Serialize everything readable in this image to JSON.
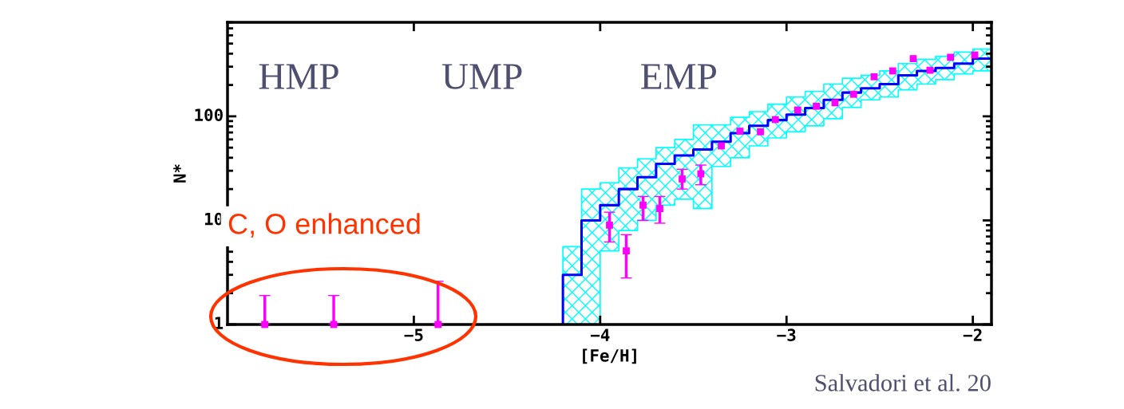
{
  "chart_data": {
    "type": "step",
    "xlabel": "[Fe/H]",
    "ylabel": "N*",
    "log": "y",
    "xlim": [
      -6.0,
      -1.9
    ],
    "xticks": [
      {
        "value": -5,
        "label": "−5"
      },
      {
        "value": -4,
        "label": "−4"
      },
      {
        "value": -3,
        "label": "−3"
      },
      {
        "value": -2,
        "label": "−2"
      }
    ],
    "ylim": [
      1,
      800
    ],
    "yticks": [
      1,
      10,
      100
    ],
    "series": [
      {
        "color": "#0000ff",
        "x": [
          -4.2,
          -4.2,
          -4.1,
          -4.0,
          -3.9,
          -3.8,
          -3.7,
          -3.6,
          -3.5,
          -3.4,
          -3.3,
          -3.2,
          -3.1,
          -3.0,
          -2.9,
          -2.8,
          -2.7,
          -2.6,
          -2.5,
          -2.4,
          -2.3,
          -2.2,
          -2.1,
          -2.0,
          -1.9
        ],
        "values": [
          1,
          3.0,
          10,
          14,
          20,
          26,
          35,
          42,
          48,
          57,
          69,
          81,
          92,
          104,
          120,
          144,
          169,
          186,
          204,
          248,
          273,
          291,
          321,
          358,
          358
        ],
        "lower": [
          1,
          1,
          1,
          5.1,
          8,
          10,
          14,
          16,
          13,
          33,
          40,
          52,
          62,
          71,
          81,
          95,
          122,
          144,
          153,
          180,
          204,
          225,
          256,
          273,
          273
        ],
        "upper": [
          1,
          5.6,
          20,
          23,
          32,
          39,
          50,
          60,
          83,
          83,
          98,
          111,
          131,
          153,
          174,
          204,
          232,
          248,
          273,
          321,
          353,
          377,
          414,
          442,
          442
        ]
      },
      {
        "type": "scatter",
        "color": "#ff00ff",
        "marker": "square",
        "x": [
          -5.8,
          -5.43,
          -4.87,
          -3.95,
          -3.86,
          -3.77,
          -3.68,
          -3.56,
          -3.46,
          -3.35,
          -3.25,
          -3.14,
          -3.06,
          -2.94,
          -2.84,
          -2.74,
          -2.64,
          -2.53,
          -2.43,
          -2.32,
          -2.23,
          -2.12,
          -1.99
        ],
        "values": [
          1,
          1,
          1,
          9,
          5.1,
          14,
          13,
          25,
          28,
          52,
          72,
          71,
          93,
          115,
          125,
          135,
          163,
          240,
          273,
          358,
          277,
          369,
          388
        ],
        "errors": [
          [
            1,
            1.9
          ],
          [
            1,
            1.9
          ],
          [
            1,
            2.6
          ],
          [
            6.2,
            12
          ],
          [
            2.8,
            7.3
          ],
          [
            10,
            17
          ],
          [
            9.4,
            17
          ],
          [
            20,
            31
          ],
          [
            22,
            34
          ],
          null,
          null,
          null,
          null,
          null,
          null,
          null,
          null,
          null,
          null,
          null,
          null,
          null,
          null
        ]
      }
    ],
    "annotations": [
      "HMP",
      "UMP",
      "EMP",
      "C, O enhanced",
      "Salvadori et al. 20"
    ]
  }
}
